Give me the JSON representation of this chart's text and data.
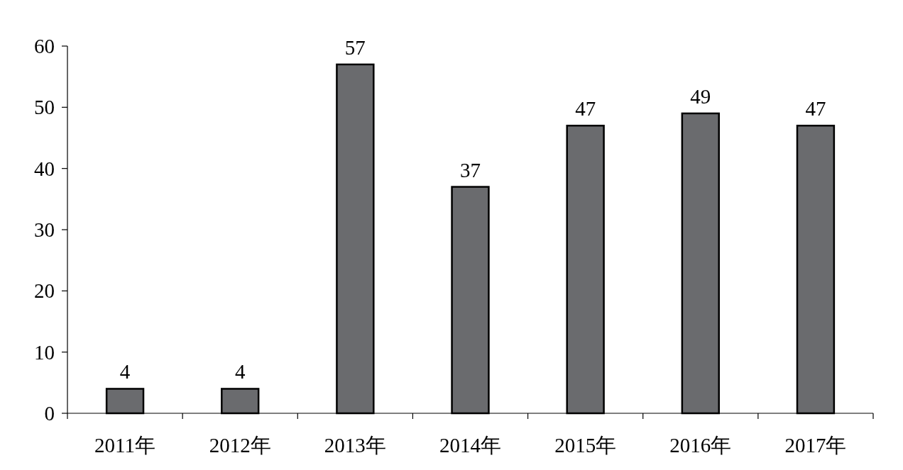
{
  "chart_data": {
    "type": "bar",
    "categories": [
      "2011年",
      "2012年",
      "2013年",
      "2014年",
      "2015年",
      "2016年",
      "2017年"
    ],
    "values": [
      4,
      4,
      57,
      37,
      47,
      49,
      47
    ],
    "color": "#6a6b6e",
    "ylim": [
      0,
      60
    ],
    "yticks": [
      0,
      10,
      20,
      30,
      40,
      50,
      60
    ],
    "data_labels": true
  }
}
